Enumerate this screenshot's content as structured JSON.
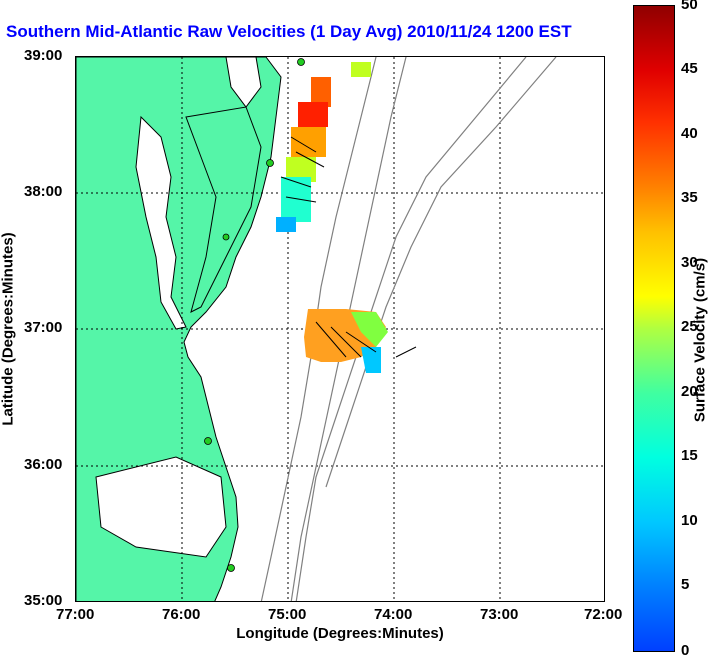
{
  "title": "Southern Mid-Atlantic Raw Velocities (1 Day Avg) 2010/11/24 1200 EST",
  "x_axis": {
    "label": "Longitude (Degrees:Minutes)",
    "ticks": [
      "77:00",
      "76:00",
      "75:00",
      "74:00",
      "73:00",
      "72:00"
    ]
  },
  "y_axis": {
    "label": "Latitude (Degrees:Minutes)",
    "ticks": [
      "39:00",
      "38:00",
      "37:00",
      "36:00",
      "35:00"
    ]
  },
  "colorbar": {
    "label": "Surface Velocity (cm/s)",
    "ticks": [
      "50",
      "45",
      "40",
      "35",
      "30",
      "25",
      "20",
      "15",
      "10",
      "5",
      "0"
    ]
  },
  "colors": {
    "land": "#55f5a8",
    "contour": "#808080",
    "title": "#0000ff",
    "station": "#22cc22"
  }
}
